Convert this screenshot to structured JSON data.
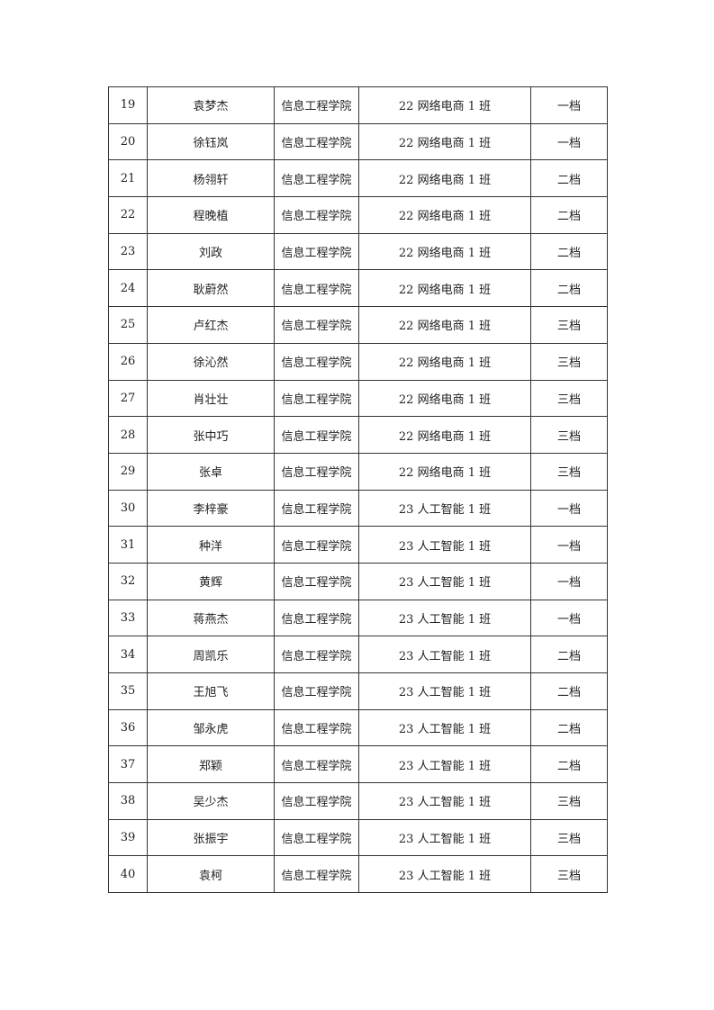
{
  "table": {
    "rows": [
      [
        "19",
        "袁梦杰",
        "信息工程学院",
        "22 网络电商 1 班",
        "一档"
      ],
      [
        "20",
        "徐钰岚",
        "信息工程学院",
        "22 网络电商 1 班",
        "一档"
      ],
      [
        "21",
        "杨翎轩",
        "信息工程学院",
        "22 网络电商 1 班",
        "二档"
      ],
      [
        "22",
        "程晚植",
        "信息工程学院",
        "22 网络电商 1 班",
        "二档"
      ],
      [
        "23",
        "刘政",
        "信息工程学院",
        "22 网络电商 1 班",
        "二档"
      ],
      [
        "24",
        "耿蔚然",
        "信息工程学院",
        "22 网络电商 1 班",
        "二档"
      ],
      [
        "25",
        "卢红杰",
        "信息工程学院",
        "22 网络电商 1 班",
        "三档"
      ],
      [
        "26",
        "徐沁然",
        "信息工程学院",
        "22 网络电商 1 班",
        "三档"
      ],
      [
        "27",
        "肖壮壮",
        "信息工程学院",
        "22 网络电商 1 班",
        "三档"
      ],
      [
        "28",
        "张中巧",
        "信息工程学院",
        "22 网络电商 1 班",
        "三档"
      ],
      [
        "29",
        "张卓",
        "信息工程学院",
        "22 网络电商 1 班",
        "三档"
      ],
      [
        "30",
        "李梓豪",
        "信息工程学院",
        "23 人工智能 1 班",
        "一档"
      ],
      [
        "31",
        "种洋",
        "信息工程学院",
        "23 人工智能 1 班",
        "一档"
      ],
      [
        "32",
        "黄辉",
        "信息工程学院",
        "23 人工智能 1 班",
        "一档"
      ],
      [
        "33",
        "蒋燕杰",
        "信息工程学院",
        "23 人工智能 1 班",
        "一档"
      ],
      [
        "34",
        "周凯乐",
        "信息工程学院",
        "23 人工智能 1 班",
        "二档"
      ],
      [
        "35",
        "王旭飞",
        "信息工程学院",
        "23 人工智能 1 班",
        "二档"
      ],
      [
        "36",
        "邹永虎",
        "信息工程学院",
        "23 人工智能 1 班",
        "二档"
      ],
      [
        "37",
        "郑颖",
        "信息工程学院",
        "23 人工智能 1 班",
        "二档"
      ],
      [
        "38",
        "吴少杰",
        "信息工程学院",
        "23 人工智能 1 班",
        "三档"
      ],
      [
        "39",
        "张振宇",
        "信息工程学院",
        "23 人工智能 1 班",
        "三档"
      ],
      [
        "40",
        "袁柯",
        "信息工程学院",
        "23 人工智能 1 班",
        "三档"
      ]
    ]
  }
}
